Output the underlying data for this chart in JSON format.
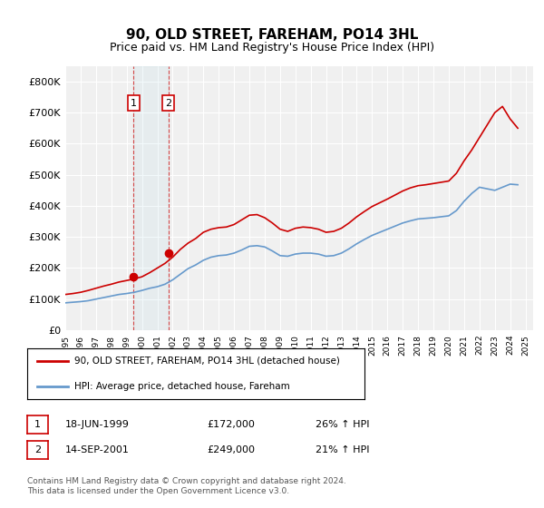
{
  "title": "90, OLD STREET, FAREHAM, PO14 3HL",
  "subtitle": "Price paid vs. HM Land Registry's House Price Index (HPI)",
  "ylabel_ticks": [
    "£0",
    "£100K",
    "£200K",
    "£300K",
    "£400K",
    "£500K",
    "£600K",
    "£700K",
    "£800K"
  ],
  "ytick_values": [
    0,
    100000,
    200000,
    300000,
    400000,
    500000,
    600000,
    700000,
    800000
  ],
  "ylim": [
    0,
    850000
  ],
  "xlim_start": 1995.0,
  "xlim_end": 2025.5,
  "background_color": "#ffffff",
  "plot_bg_color": "#f0f0f0",
  "grid_color": "#ffffff",
  "purchase1_date": 1999.46,
  "purchase1_price": 172000,
  "purchase1_label": "1",
  "purchase1_hpi_pct": "26%",
  "purchase2_date": 2001.71,
  "purchase2_price": 249000,
  "purchase2_label": "2",
  "purchase2_hpi_pct": "21%",
  "red_line_color": "#cc0000",
  "blue_line_color": "#6699cc",
  "marker_color": "#cc0000",
  "legend_label_red": "90, OLD STREET, FAREHAM, PO14 3HL (detached house)",
  "legend_label_blue": "HPI: Average price, detached house, Fareham",
  "footer": "Contains HM Land Registry data © Crown copyright and database right 2024.\nThis data is licensed under the Open Government Licence v3.0.",
  "table_row1": [
    "1",
    "18-JUN-1999",
    "£172,000",
    "26% ↑ HPI"
  ],
  "table_row2": [
    "2",
    "14-SEP-2001",
    "£249,000",
    "21% ↑ HPI"
  ],
  "hpi_years": [
    1995,
    1995.5,
    1996,
    1996.5,
    1997,
    1997.5,
    1998,
    1998.5,
    1999,
    1999.5,
    2000,
    2000.5,
    2001,
    2001.5,
    2002,
    2002.5,
    2003,
    2003.5,
    2004,
    2004.5,
    2005,
    2005.5,
    2006,
    2006.5,
    2007,
    2007.5,
    2008,
    2008.5,
    2009,
    2009.5,
    2010,
    2010.5,
    2011,
    2011.5,
    2012,
    2012.5,
    2013,
    2013.5,
    2014,
    2014.5,
    2015,
    2015.5,
    2016,
    2016.5,
    2017,
    2017.5,
    2018,
    2018.5,
    2019,
    2019.5,
    2020,
    2020.5,
    2021,
    2021.5,
    2022,
    2022.5,
    2023,
    2023.5,
    2024,
    2024.5
  ],
  "hpi_values": [
    88000,
    90000,
    92000,
    95000,
    100000,
    105000,
    110000,
    115000,
    118000,
    122000,
    128000,
    135000,
    140000,
    148000,
    162000,
    180000,
    198000,
    210000,
    225000,
    235000,
    240000,
    242000,
    248000,
    258000,
    270000,
    272000,
    268000,
    255000,
    240000,
    238000,
    245000,
    248000,
    248000,
    245000,
    238000,
    240000,
    248000,
    262000,
    278000,
    292000,
    305000,
    315000,
    325000,
    335000,
    345000,
    352000,
    358000,
    360000,
    362000,
    365000,
    368000,
    385000,
    415000,
    440000,
    460000,
    455000,
    450000,
    460000,
    470000,
    468000
  ],
  "red_years": [
    1995,
    1995.5,
    1996,
    1996.5,
    1997,
    1997.5,
    1998,
    1998.5,
    1999,
    1999.5,
    2000,
    2000.5,
    2001,
    2001.5,
    2002,
    2002.5,
    2003,
    2003.5,
    2004,
    2004.5,
    2005,
    2005.5,
    2006,
    2006.5,
    2007,
    2007.5,
    2008,
    2008.5,
    2009,
    2009.5,
    2010,
    2010.5,
    2011,
    2011.5,
    2012,
    2012.5,
    2013,
    2013.5,
    2014,
    2014.5,
    2015,
    2015.5,
    2016,
    2016.5,
    2017,
    2017.5,
    2018,
    2018.5,
    2019,
    2019.5,
    2020,
    2020.5,
    2021,
    2021.5,
    2022,
    2022.5,
    2023,
    2023.5,
    2024,
    2024.5
  ],
  "red_values": [
    115000,
    118000,
    122000,
    128000,
    135000,
    142000,
    148000,
    155000,
    160000,
    165000,
    172000,
    185000,
    200000,
    215000,
    235000,
    260000,
    280000,
    295000,
    315000,
    325000,
    330000,
    332000,
    340000,
    355000,
    370000,
    372000,
    362000,
    345000,
    325000,
    318000,
    328000,
    332000,
    330000,
    325000,
    315000,
    318000,
    328000,
    345000,
    365000,
    382000,
    398000,
    410000,
    422000,
    435000,
    448000,
    458000,
    465000,
    468000,
    472000,
    476000,
    480000,
    505000,
    545000,
    580000,
    620000,
    660000,
    700000,
    720000,
    680000,
    650000
  ]
}
